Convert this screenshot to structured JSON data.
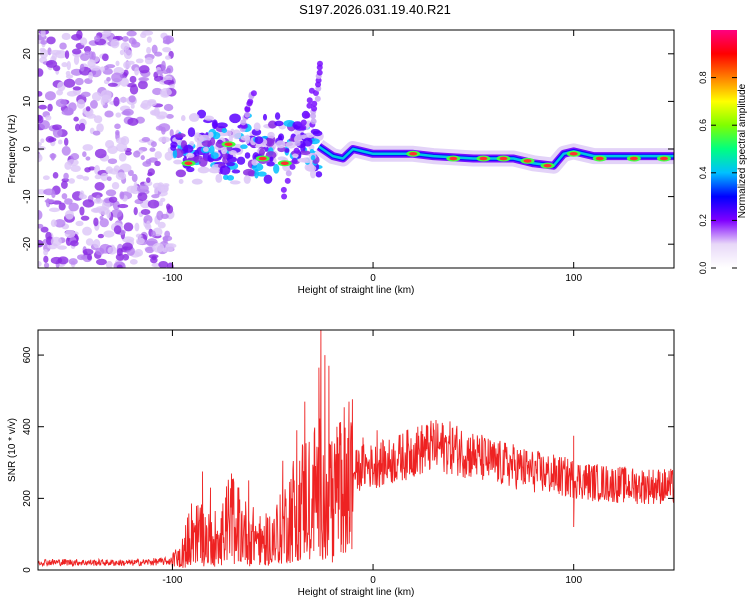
{
  "title": "S197.2026.031.19.40.R21",
  "chart_data": [
    {
      "type": "heatmap",
      "panel": "spectrogram",
      "xlabel": "Height of straight line (km)",
      "ylabel": "Frequency (Hz)",
      "xlim": [
        -167,
        150
      ],
      "ylim": [
        -25,
        25
      ],
      "xticks": [
        -100,
        0,
        100
      ],
      "yticks": [
        -20,
        -10,
        0,
        10,
        20
      ],
      "colorbar": {
        "label": "Normalized spectral amplitude",
        "range": [
          0.0,
          1.0
        ],
        "ticks": [
          0.0,
          0.2,
          0.4,
          0.6,
          0.8
        ],
        "tick_labels": [
          "0.0",
          "0.2",
          "0.4",
          "0.6",
          "0.8"
        ],
        "colormap": [
          "#ffffff",
          "#e8d8f8",
          "#8000ff",
          "#0000ff",
          "#00c0ff",
          "#00ff80",
          "#80ff00",
          "#ffff00",
          "#ff8000",
          "#ff0000",
          "#ff0080"
        ]
      },
      "noise_region": {
        "x_range": [
          -167,
          -100
        ],
        "amplitude": 0.15
      },
      "scattered_region": {
        "x_range": [
          -100,
          -27
        ],
        "freq_center": 0,
        "freq_spread": 6,
        "amplitude": 0.3
      },
      "branches": [
        {
          "from": [
            -45,
            -10
          ],
          "to": [
            -30,
            12
          ]
        },
        {
          "from": [
            -65,
            4
          ],
          "to": [
            -60,
            12
          ]
        },
        {
          "from": [
            -30,
            5
          ],
          "to": [
            -26,
            18
          ]
        }
      ],
      "ridge": {
        "points": [
          [
            -27,
            0.5
          ],
          [
            -20,
            -1.5
          ],
          [
            -15,
            -2
          ],
          [
            -10,
            0
          ],
          [
            0,
            -1
          ],
          [
            10,
            -1
          ],
          [
            20,
            -1
          ],
          [
            30,
            -1.5
          ],
          [
            50,
            -2
          ],
          [
            70,
            -2
          ],
          [
            80,
            -3
          ],
          [
            90,
            -3.5
          ],
          [
            95,
            -1
          ],
          [
            100,
            -0.5
          ],
          [
            110,
            -1.5
          ],
          [
            130,
            -1.5
          ],
          [
            150,
            -1.5
          ]
        ],
        "hotspots": [
          [
            -92,
            -3
          ],
          [
            -72,
            1
          ],
          [
            -55,
            -2
          ],
          [
            -44,
            -3
          ],
          [
            20,
            -1
          ],
          [
            40,
            -2
          ],
          [
            55,
            -2
          ],
          [
            65,
            -2
          ],
          [
            77,
            -2.5
          ],
          [
            87,
            -3.5
          ],
          [
            100,
            -1
          ],
          [
            113,
            -2
          ],
          [
            130,
            -2
          ],
          [
            145,
            -2
          ]
        ]
      }
    },
    {
      "type": "line",
      "panel": "snr",
      "xlabel": "Height of straight line (km)",
      "ylabel": "SNR (10 * v/v)",
      "xlim": [
        -167,
        150
      ],
      "ylim": [
        0,
        670
      ],
      "xticks": [
        -100,
        0,
        100
      ],
      "yticks": [
        0,
        200,
        400,
        600
      ],
      "color": "#ee2222",
      "envelope": [
        [
          -167,
          22
        ],
        [
          -120,
          20
        ],
        [
          -100,
          25
        ],
        [
          -95,
          50
        ],
        [
          -90,
          110
        ],
        [
          -85,
          95
        ],
        [
          -80,
          80
        ],
        [
          -75,
          120
        ],
        [
          -70,
          150
        ],
        [
          -65,
          110
        ],
        [
          -60,
          95
        ],
        [
          -55,
          80
        ],
        [
          -50,
          90
        ],
        [
          -45,
          120
        ],
        [
          -40,
          170
        ],
        [
          -35,
          200
        ],
        [
          -30,
          220
        ],
        [
          -25,
          230
        ],
        [
          -20,
          210
        ],
        [
          -15,
          240
        ],
        [
          -10,
          270
        ],
        [
          -5,
          290
        ],
        [
          0,
          290
        ],
        [
          10,
          305
        ],
        [
          20,
          330
        ],
        [
          30,
          345
        ],
        [
          40,
          340
        ],
        [
          50,
          320
        ],
        [
          60,
          300
        ],
        [
          70,
          290
        ],
        [
          80,
          275
        ],
        [
          90,
          265
        ],
        [
          100,
          255
        ],
        [
          110,
          245
        ],
        [
          120,
          240
        ],
        [
          130,
          235
        ],
        [
          140,
          235
        ],
        [
          150,
          232
        ]
      ],
      "spikes": [
        [
          -85,
          275
        ],
        [
          -81,
          230
        ],
        [
          -72,
          220
        ],
        [
          -62,
          250
        ],
        [
          -45,
          305
        ],
        [
          -38,
          390
        ],
        [
          -34,
          470
        ],
        [
          -27,
          565
        ],
        [
          -26,
          670
        ],
        [
          -24,
          600
        ],
        [
          -22,
          570
        ],
        [
          -18,
          400
        ],
        [
          -12,
          470
        ],
        [
          -5,
          370
        ],
        [
          2,
          390
        ],
        [
          30,
          410
        ],
        [
          100,
          375
        ]
      ],
      "dips": [
        [
          100,
          120
        ],
        [
          -20,
          40
        ],
        [
          -16,
          50
        ]
      ]
    }
  ]
}
